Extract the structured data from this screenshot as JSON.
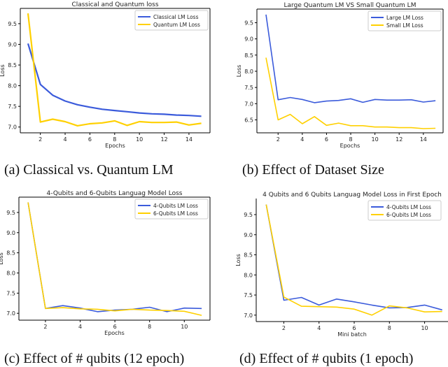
{
  "chart_data": [
    {
      "type": "line",
      "title": "Classical and Quantum loss",
      "xlabel": "Epochs",
      "ylabel": "Loss",
      "x": [
        1,
        2,
        3,
        4,
        5,
        6,
        7,
        8,
        9,
        10,
        11,
        12,
        13,
        14,
        15
      ],
      "xlim": [
        0.38,
        15.7
      ],
      "ylim": [
        6.86,
        9.87
      ],
      "xticks": [
        2,
        4,
        6,
        8,
        10,
        12,
        14
      ],
      "yticks": [
        7.0,
        7.5,
        8.0,
        8.5,
        9.0,
        9.5
      ],
      "legend": "top-right",
      "series": [
        {
          "name": "Classical LM Loss",
          "color": "#3b5bdb",
          "values": [
            9.02,
            8.03,
            7.77,
            7.63,
            7.54,
            7.48,
            7.43,
            7.4,
            7.37,
            7.34,
            7.32,
            7.31,
            7.29,
            7.28,
            7.26
          ]
        },
        {
          "name": "Quantum LM Loss",
          "color": "#ffd000",
          "values": [
            9.75,
            7.12,
            7.19,
            7.13,
            7.03,
            7.08,
            7.1,
            7.15,
            7.04,
            7.13,
            7.11,
            7.11,
            7.12,
            7.05,
            7.09
          ]
        }
      ],
      "caption": "(a) Classical vs. Quantum LM"
    },
    {
      "type": "line",
      "title": "Large Quantum LM VS Small Quantum LM",
      "xlabel": "Epochs",
      "ylabel": "Loss",
      "x": [
        1,
        2,
        3,
        4,
        5,
        6,
        7,
        8,
        9,
        10,
        11,
        12,
        13,
        14,
        15
      ],
      "xlim": [
        0.25,
        15.63
      ],
      "ylim": [
        6.1,
        9.92
      ],
      "xticks": [
        2,
        4,
        6,
        8,
        10,
        12,
        14
      ],
      "yticks": [
        6.5,
        7.0,
        7.5,
        8.0,
        8.5,
        9.0,
        9.5
      ],
      "legend": "top-right",
      "series": [
        {
          "name": "Large LM Loss",
          "color": "#3b5bdb",
          "values": [
            9.75,
            7.12,
            7.19,
            7.13,
            7.03,
            7.08,
            7.1,
            7.15,
            7.04,
            7.13,
            7.11,
            7.11,
            7.12,
            7.05,
            7.09
          ]
        },
        {
          "name": "Small LM Loss",
          "color": "#ffd000",
          "values": [
            8.42,
            6.5,
            6.67,
            6.38,
            6.6,
            6.33,
            6.4,
            6.32,
            6.32,
            6.28,
            6.28,
            6.26,
            6.26,
            6.23,
            6.24
          ]
        }
      ],
      "caption": "(b) Effect of Dataset Size"
    },
    {
      "type": "line",
      "title": "4-Qubits and 6-Qubits Languag Model Loss",
      "xlabel": "Epochs",
      "ylabel": "Loss",
      "x": [
        1,
        2,
        3,
        4,
        5,
        6,
        7,
        8,
        9,
        10,
        11
      ],
      "xlim": [
        0.47,
        11.48
      ],
      "ylim": [
        6.83,
        9.88
      ],
      "xticks": [
        2,
        4,
        6,
        8,
        10
      ],
      "yticks": [
        7.0,
        7.5,
        8.0,
        8.5,
        9.0,
        9.5
      ],
      "legend": "top-right",
      "series": [
        {
          "name": "4-Qubits LM Loss",
          "color": "#3b5bdb",
          "values": [
            9.75,
            7.12,
            7.19,
            7.13,
            7.04,
            7.08,
            7.1,
            7.15,
            7.04,
            7.13,
            7.12
          ]
        },
        {
          "name": "6-Qubits LM Loss",
          "color": "#ffd000",
          "values": [
            9.75,
            7.12,
            7.14,
            7.11,
            7.1,
            7.06,
            7.1,
            7.08,
            7.07,
            7.05,
            6.95
          ]
        }
      ],
      "caption": "(c) Effect of # qubits (12 epoch)"
    },
    {
      "type": "line",
      "title": "4 Qubits and 6 Qubits Languag Model Loss in First Epoch",
      "xlabel": "Mini batch",
      "ylabel": "Loss",
      "x": [
        1,
        2,
        3,
        4,
        5,
        6,
        7,
        8,
        9,
        10,
        11
      ],
      "xlim": [
        0.43,
        11.33
      ],
      "ylim": [
        6.84,
        9.9
      ],
      "xticks": [
        2,
        4,
        6,
        8,
        10
      ],
      "yticks": [
        7.0,
        7.5,
        8.0,
        8.5,
        9.0,
        9.5
      ],
      "legend": "top-right",
      "series": [
        {
          "name": "4-Qubits LM Loss",
          "color": "#3b5bdb",
          "values": [
            9.75,
            7.37,
            7.44,
            7.25,
            7.4,
            7.33,
            7.25,
            7.18,
            7.19,
            7.25,
            7.13
          ]
        },
        {
          "name": "6-Qubits LM Loss",
          "color": "#ffd000",
          "values": [
            9.75,
            7.45,
            7.22,
            7.21,
            7.2,
            7.15,
            7.0,
            7.23,
            7.18,
            7.08,
            7.09
          ]
        }
      ],
      "caption": "(d) Effect of # qubits (1 epoch)"
    }
  ]
}
